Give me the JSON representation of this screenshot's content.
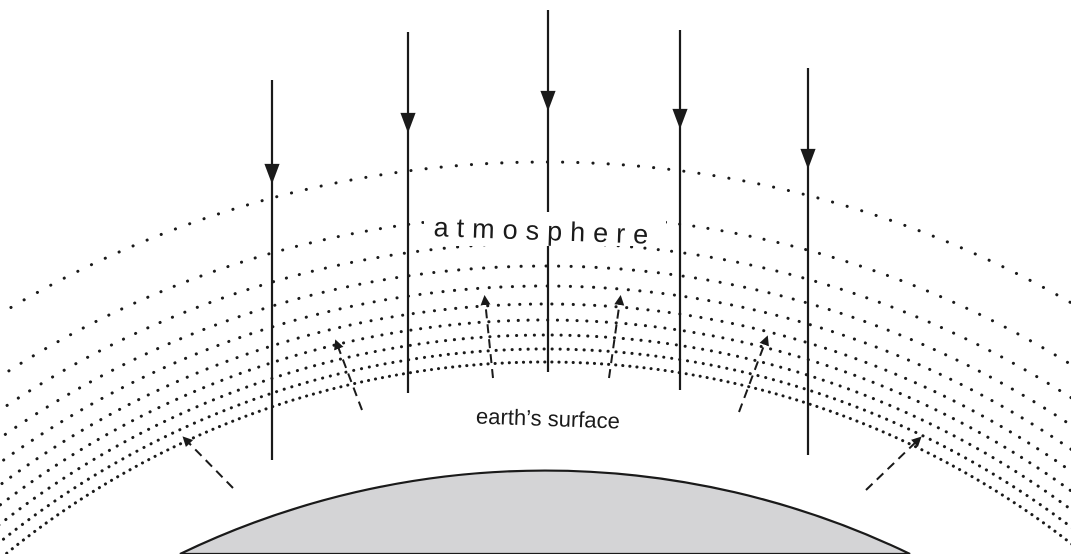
{
  "labels": {
    "atmosphere": "atmosphere",
    "surface": "earth’s surface"
  },
  "colors": {
    "earth_fill": "#d4d4d6",
    "ink": "#1a1a1a",
    "background": "#ffffff"
  },
  "elements": {
    "incoming_rays": 5,
    "outgoing_rays": 6,
    "atmosphere_layers": 10
  }
}
